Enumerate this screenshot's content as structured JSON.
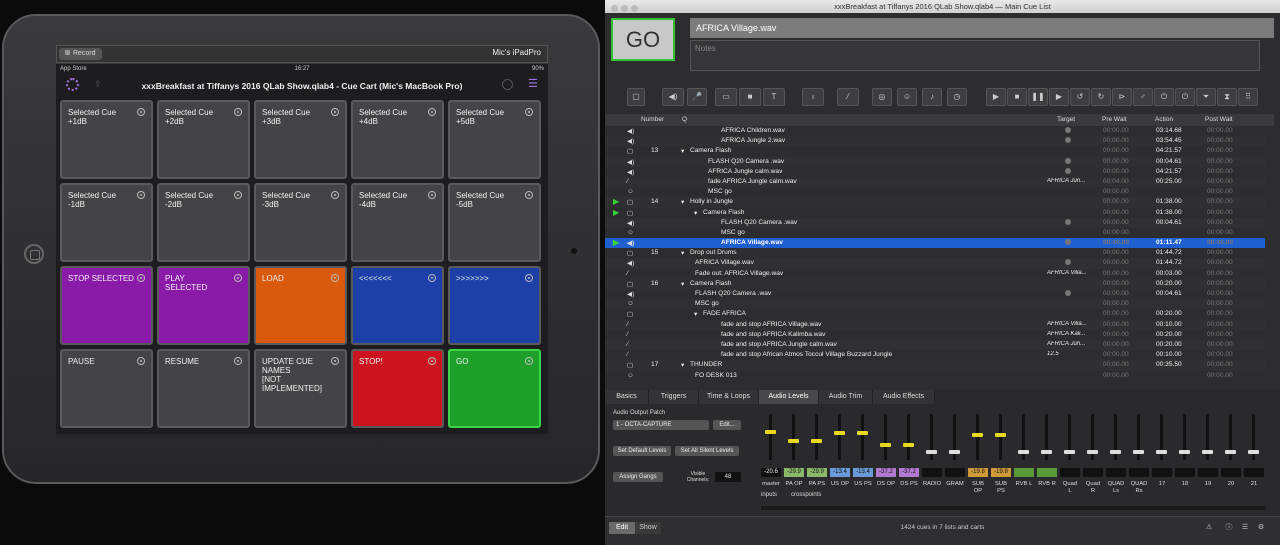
{
  "ipad": {
    "record_label": "Record",
    "device_name": "Mic's iPadPro",
    "status_left": "App Store",
    "status_time": "16:27",
    "status_right": "90%",
    "title": "xxxBreakfast at Tiffanys 2016 QLab Show.qlab4 - Cue Cart (Mic's MacBook Pro)",
    "buttons": [
      {
        "label": "Selected Cue\n+1dB",
        "color": "#444446"
      },
      {
        "label": "Selected Cue\n+2dB",
        "color": "#444446"
      },
      {
        "label": "Selected Cue\n+3dB",
        "color": "#444446"
      },
      {
        "label": "Selected Cue\n+4dB",
        "color": "#444446"
      },
      {
        "label": "Selected Cue\n+5dB",
        "color": "#444446"
      },
      {
        "label": "Selected Cue\n-1dB",
        "color": "#444446"
      },
      {
        "label": "Selected Cue\n-2dB",
        "color": "#444446"
      },
      {
        "label": "Selected Cue\n-3dB",
        "color": "#444446"
      },
      {
        "label": "Selected Cue\n-4dB",
        "color": "#444446"
      },
      {
        "label": "Selected Cue\n-5dB",
        "color": "#444446"
      },
      {
        "label": "STOP SELECTED",
        "color": "#8a1aa8"
      },
      {
        "label": "PLAY\nSELECTED",
        "color": "#8a1aa8"
      },
      {
        "label": "LOAD",
        "color": "#d95a0c"
      },
      {
        "label": "<<<<<<<",
        "color": "#1c3fa8"
      },
      {
        "label": ">>>>>>>",
        "color": "#1c3fa8"
      },
      {
        "label": "PAUSE",
        "color": "#444446"
      },
      {
        "label": "RESUME",
        "color": "#444446"
      },
      {
        "label": "UPDATE CUE\nNAMES\n[NOT\nIMPLEMENTED]",
        "color": "#444446"
      },
      {
        "label": "STOP!",
        "color": "#cc1420"
      },
      {
        "label": "GO",
        "color": "#1e9f2a"
      }
    ]
  },
  "qlab": {
    "window_title": "xxxBreakfast at Tiffanys 2016 QLab Show.qlab4 — Main Cue List",
    "go_label": "GO",
    "cue_name": "AFRICA Village.wav",
    "notes_placeholder": "Notes",
    "columns": {
      "number": "Number",
      "q": "Q",
      "target": "Target",
      "pre_wait": "Pre Wait",
      "action": "Action",
      "post_wait": "Post Wait"
    },
    "rows": [
      {
        "icon": "audio",
        "num": "",
        "indent": 3,
        "name": "AFRICA Children.wav",
        "target": "dot",
        "pre": "00:00.00",
        "action": "03:14.68",
        "post": "00:00.00"
      },
      {
        "icon": "audio",
        "num": "",
        "indent": 3,
        "name": "AFRICA Jungle 2.wav",
        "target": "dot",
        "pre": "00:00.00",
        "action": "03:54.45",
        "post": "00:00.00"
      },
      {
        "icon": "group",
        "num": "13",
        "indent": 0,
        "group": true,
        "name": "Camera Flash",
        "target": "",
        "pre": "00:00.00",
        "action": "04:21.57",
        "post": "00:00.00"
      },
      {
        "icon": "audio",
        "num": "",
        "indent": 2,
        "name": "FLASH Q20 Camera .wav",
        "target": "dot",
        "pre": "00:00.00",
        "action": "00:04.61",
        "post": "00:00.00"
      },
      {
        "icon": "audio",
        "num": "",
        "indent": 2,
        "name": "AFRICA Jungle calm.wav",
        "target": "dot",
        "pre": "00:00.00",
        "action": "04:21.57",
        "post": "00:00.00"
      },
      {
        "icon": "fade",
        "num": "",
        "indent": 2,
        "name": "fade AFRICA Jungle calm.wav",
        "target": "AFRICA Jun...",
        "pre": "00:04.00",
        "action": "00:25.00",
        "post": "00:00.00"
      },
      {
        "icon": "midi",
        "num": "",
        "indent": 2,
        "name": "MSC go",
        "target": "",
        "pre": "00:00.00",
        "action": "",
        "post": "00:00.00"
      },
      {
        "icon": "group",
        "num": "14",
        "indent": 0,
        "group": true,
        "play": true,
        "name": "Holly in Jungle",
        "target": "",
        "pre": "00:00.00",
        "action": "01:38.00",
        "post": "00:00.00"
      },
      {
        "icon": "group",
        "num": "",
        "indent": 1,
        "group": true,
        "play": true,
        "name": "Camera Flash",
        "target": "",
        "pre": "00:00.00",
        "action": "01:38.00",
        "post": "00:00.00"
      },
      {
        "icon": "audio",
        "num": "",
        "indent": 3,
        "name": "FLASH Q20 Camera .wav",
        "target": "dot",
        "pre": "00:00.00",
        "action": "00:04.61",
        "post": "00:00.00"
      },
      {
        "icon": "midi",
        "num": "",
        "indent": 3,
        "name": "MSC go",
        "target": "",
        "pre": "00:00.00",
        "action": "",
        "post": "00:00.00"
      },
      {
        "icon": "audio",
        "num": "",
        "indent": 3,
        "selected": true,
        "play": true,
        "name": "AFRICA Village.wav",
        "target": "dot",
        "pre": "00:00.00",
        "action": "01:11.47",
        "post": "00:00.00"
      },
      {
        "icon": "group",
        "num": "15",
        "indent": 0,
        "group": true,
        "name": "Drop out Drums",
        "target": "",
        "pre": "00:00.00",
        "action": "01:44.72",
        "post": "00:00.00"
      },
      {
        "icon": "audio",
        "num": "",
        "indent": 1,
        "name": "AFRICA Village.wav",
        "target": "dot",
        "pre": "00:00.00",
        "action": "01:44.72",
        "post": "00:00.00"
      },
      {
        "icon": "fade",
        "num": "",
        "indent": 1,
        "name": "Fade out: AFRICA Village.wav",
        "target": "AFRICA Villa...",
        "pre": "00:00.00",
        "action": "00:03.00",
        "post": "00:00.00"
      },
      {
        "icon": "group",
        "num": "16",
        "indent": 0,
        "group": true,
        "name": "Camera Flash",
        "target": "",
        "pre": "00:00.00",
        "action": "00:20.00",
        "post": "00:00.00"
      },
      {
        "icon": "audio",
        "num": "",
        "indent": 1,
        "name": "FLASH Q20 Camera .wav",
        "target": "dot",
        "pre": "00:00.00",
        "action": "00:04.61",
        "post": "00:00.00"
      },
      {
        "icon": "midi",
        "num": "",
        "indent": 1,
        "name": "MSC go",
        "target": "",
        "pre": "00:00.00",
        "action": "",
        "post": "00:00.00"
      },
      {
        "icon": "group",
        "num": "",
        "indent": 1,
        "group": true,
        "name": "FADE AFRICA",
        "target": "",
        "pre": "00:00.00",
        "action": "00:20.00",
        "post": "00:00.00"
      },
      {
        "icon": "fade",
        "num": "",
        "indent": 3,
        "name": "fade and stop AFRICA Village.wav",
        "target": "AFRICA Villa...",
        "pre": "00:00.00",
        "action": "00:10.00",
        "post": "00:00.00"
      },
      {
        "icon": "fade",
        "num": "",
        "indent": 3,
        "name": "fade and stop AFRICA Kalimba.wav",
        "target": "AFRICA Kali...",
        "pre": "00:00.00",
        "action": "00:20.00",
        "post": "00:00.00"
      },
      {
        "icon": "fade",
        "num": "",
        "indent": 3,
        "name": "fade and stop AFRICA Jungle calm.wav",
        "target": "AFRICA Jun...",
        "pre": "00:00.00",
        "action": "00:20.00",
        "post": "00:00.00"
      },
      {
        "icon": "fade",
        "num": "",
        "indent": 3,
        "name": "fade and stop African Atmos Toccul Village Buzzard Jungle",
        "target": "12.5",
        "pre": "00:00.00",
        "action": "00:10.00",
        "post": "00:00.00"
      },
      {
        "icon": "group",
        "num": "17",
        "indent": 0,
        "group": true,
        "name": "THUNDER",
        "target": "",
        "pre": "00:00.00",
        "action": "00:35.50",
        "post": "00:00.00"
      },
      {
        "icon": "midi",
        "num": "",
        "indent": 1,
        "name": "FO DESK 013",
        "target": "",
        "pre": "00:00.00",
        "action": "",
        "post": "00:00.00"
      }
    ],
    "tabs": [
      "Basics",
      "Triggers",
      "Time & Loops",
      "Audio Levels",
      "Audio Trim",
      "Audio Effects"
    ],
    "active_tab": "Audio Levels",
    "audio_output_patch_label": "Audio Output Patch",
    "audio_output_patch_value": "1 - OCTA-CAPTURE",
    "edit_label": "Edit...",
    "set_default_levels": "Set Default Levels",
    "set_all_silent": "Set All Silent Levels",
    "assign_gangs": "Assign Gangs",
    "visible_channels_label": "Visible Channels:",
    "visible_channels_value": "48",
    "channels": [
      {
        "name": "master",
        "value": "-20.6",
        "level": 0.62,
        "color": "#111111"
      },
      {
        "name": "PA OP",
        "value": "-29.9",
        "level": 0.4,
        "color": "#8ab86a"
      },
      {
        "name": "PA PS",
        "value": "-29.9",
        "level": 0.4,
        "color": "#8ab86a"
      },
      {
        "name": "US OP",
        "value": "-13.4",
        "level": 0.6,
        "color": "#6a9ad8"
      },
      {
        "name": "US PS",
        "value": "-13.4",
        "level": 0.6,
        "color": "#6a9ad8"
      },
      {
        "name": "DS OP",
        "value": "-37.2",
        "level": 0.3,
        "color": "#b07ad0"
      },
      {
        "name": "DS PS",
        "value": "-37.2",
        "level": 0.3,
        "color": "#b07ad0"
      },
      {
        "name": "RADIO",
        "value": "",
        "level": 0,
        "color": "#111111"
      },
      {
        "name": "GRAM",
        "value": "",
        "level": 0,
        "color": "#111111"
      },
      {
        "name": "SUB\nOP",
        "value": "-19.8",
        "level": 0.55,
        "color": "#d09a3a"
      },
      {
        "name": "SUB\nPS",
        "value": "-19.8",
        "level": 0.55,
        "color": "#d09a3a"
      },
      {
        "name": "RVB L",
        "value": "",
        "level": 0,
        "color": "#5a9a3a"
      },
      {
        "name": "RVB R",
        "value": "",
        "level": 0,
        "color": "#5a9a3a"
      },
      {
        "name": "Quad\nL",
        "value": "",
        "level": 0,
        "color": "#111111"
      },
      {
        "name": "Quad\nR",
        "value": "",
        "level": 0,
        "color": "#111111"
      },
      {
        "name": "QUAD\nLs",
        "value": "",
        "level": 0,
        "color": "#111111"
      },
      {
        "name": "QUAD\nRs",
        "value": "",
        "level": 0,
        "color": "#111111"
      },
      {
        "name": "17",
        "value": "",
        "level": 0,
        "color": "#111111"
      },
      {
        "name": "18",
        "value": "",
        "level": 0,
        "color": "#111111"
      },
      {
        "name": "19",
        "value": "",
        "level": 0,
        "color": "#111111"
      },
      {
        "name": "20",
        "value": "",
        "level": 0,
        "color": "#111111"
      },
      {
        "name": "21",
        "value": "",
        "level": 0,
        "color": "#111111"
      }
    ],
    "inputs_label": "inputs",
    "crosspoints_label": "crosspoints",
    "edit_mode": "Edit",
    "show_mode": "Show",
    "status_text": "1424 cues in 7 lists and carts"
  }
}
